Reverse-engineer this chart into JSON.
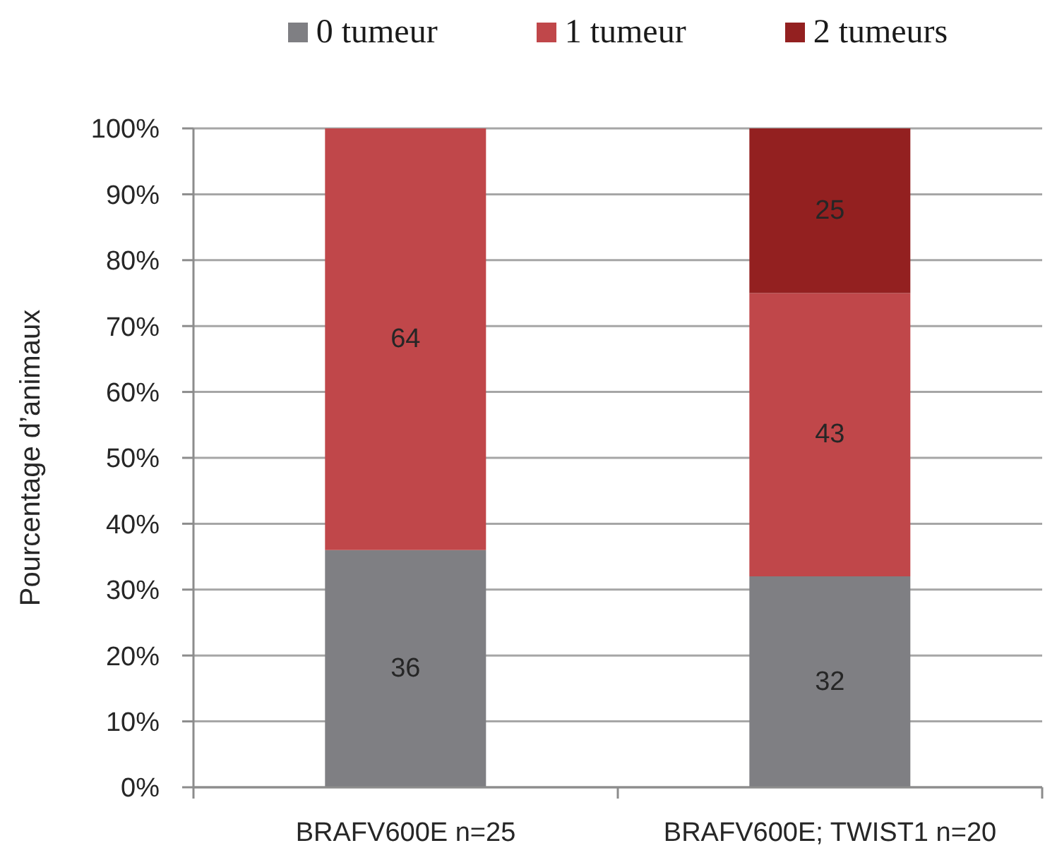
{
  "chart_data": {
    "type": "bar",
    "stacked": true,
    "ylabel": "Pourcentage d’animaux",
    "categories": [
      "BRAFV600E n=25",
      "BRAFV600E; TWIST1 n=20"
    ],
    "series": [
      {
        "name": "0 tumeur",
        "color": "#7f7f83",
        "values": [
          36,
          32
        ]
      },
      {
        "name": "1 tumeur",
        "color": "#c0474a",
        "values": [
          64,
          43
        ]
      },
      {
        "name": "2 tumeurs",
        "color": "#932020",
        "values": [
          null,
          25
        ]
      }
    ],
    "ylim": [
      0,
      100
    ],
    "yticks": [
      {
        "value": 0,
        "label": "0%"
      },
      {
        "value": 10,
        "label": "10%"
      },
      {
        "value": 20,
        "label": "20%"
      },
      {
        "value": 30,
        "label": "30%"
      },
      {
        "value": 40,
        "label": "40%"
      },
      {
        "value": 50,
        "label": "50%"
      },
      {
        "value": 60,
        "label": "60%"
      },
      {
        "value": 70,
        "label": "70%"
      },
      {
        "value": 80,
        "label": "80%"
      },
      {
        "value": 90,
        "label": "90%"
      },
      {
        "value": 100,
        "label": "100%"
      }
    ],
    "grid": "y",
    "legend": "top",
    "data_labels": true
  }
}
